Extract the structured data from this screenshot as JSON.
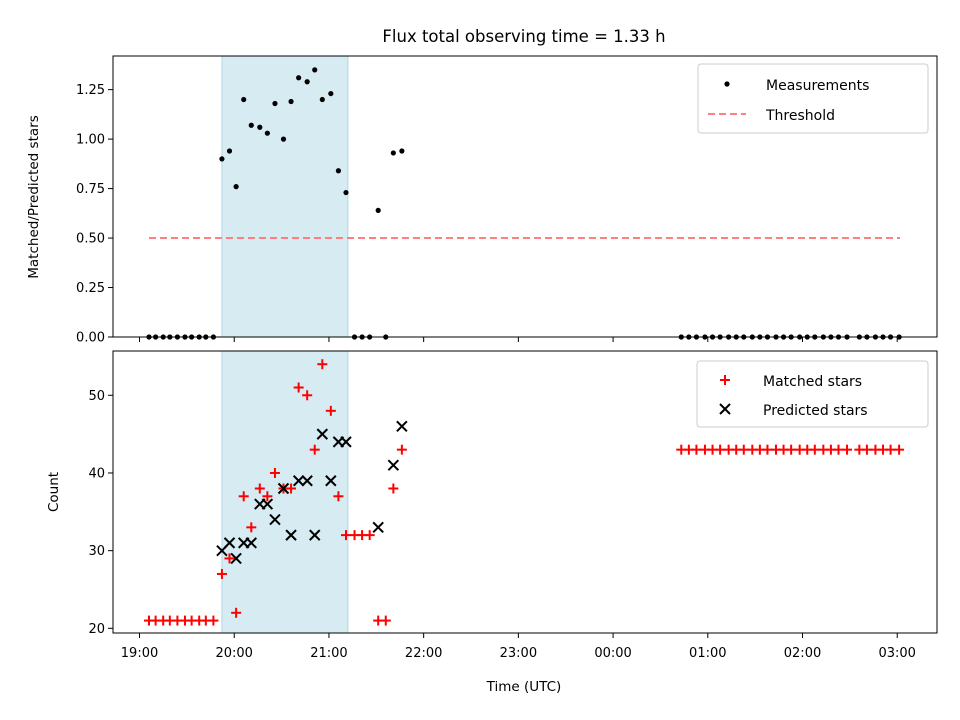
{
  "chart_data": {
    "type": "scatter",
    "title": "Flux total observing time = 1.33 h",
    "xlabel": "Time (UTC)",
    "x_ticks": [
      {
        "h": 19,
        "label": "19:00"
      },
      {
        "h": 20,
        "label": "20:00"
      },
      {
        "h": 21,
        "label": "21:00"
      },
      {
        "h": 22,
        "label": "22:00"
      },
      {
        "h": 23,
        "label": "23:00"
      },
      {
        "h": 24,
        "label": "00:00"
      },
      {
        "h": 25,
        "label": "01:00"
      },
      {
        "h": 26,
        "label": "02:00"
      },
      {
        "h": 27,
        "label": "03:00"
      }
    ],
    "xlim": [
      18.72,
      27.42
    ],
    "shaded_span": [
      19.87,
      21.2
    ],
    "panels": {
      "top": {
        "ylabel": "Matched/Predicted stars",
        "ylim": [
          0,
          1.42
        ],
        "y_ticks": [
          {
            "v": 0,
            "label": "0.00"
          },
          {
            "v": 0.25,
            "label": "0.25"
          },
          {
            "v": 0.5,
            "label": "0.50"
          },
          {
            "v": 0.75,
            "label": "0.75"
          },
          {
            "v": 1.0,
            "label": "1.00"
          },
          {
            "v": 1.25,
            "label": "1.25"
          }
        ],
        "legend": {
          "position": "top-right",
          "measurements": "Measurements",
          "threshold": "Threshold"
        },
        "threshold": {
          "value": 0.5,
          "x_range": [
            19.1,
            27.03
          ],
          "color": "#ff7f7f"
        },
        "measurements": [
          [
            19.1,
            0
          ],
          [
            19.17,
            0
          ],
          [
            19.25,
            0
          ],
          [
            19.32,
            0
          ],
          [
            19.4,
            0
          ],
          [
            19.48,
            0
          ],
          [
            19.55,
            0
          ],
          [
            19.63,
            0
          ],
          [
            19.7,
            0
          ],
          [
            19.78,
            0
          ],
          [
            19.87,
            0.9
          ],
          [
            19.95,
            0.94
          ],
          [
            20.02,
            0.76
          ],
          [
            20.1,
            1.2
          ],
          [
            20.18,
            1.07
          ],
          [
            20.27,
            1.06
          ],
          [
            20.35,
            1.03
          ],
          [
            20.43,
            1.18
          ],
          [
            20.52,
            1.0
          ],
          [
            20.6,
            1.19
          ],
          [
            20.68,
            1.31
          ],
          [
            20.77,
            1.29
          ],
          [
            20.85,
            1.35
          ],
          [
            20.93,
            1.2
          ],
          [
            21.02,
            1.23
          ],
          [
            21.1,
            0.84
          ],
          [
            21.18,
            0.73
          ],
          [
            21.27,
            0
          ],
          [
            21.35,
            0
          ],
          [
            21.43,
            0
          ],
          [
            21.52,
            0.64
          ],
          [
            21.6,
            0
          ],
          [
            21.68,
            0.93
          ],
          [
            21.77,
            0.94
          ],
          [
            24.72,
            0
          ],
          [
            24.8,
            0
          ],
          [
            24.88,
            0
          ],
          [
            24.97,
            0
          ],
          [
            25.05,
            0
          ],
          [
            25.13,
            0
          ],
          [
            25.22,
            0
          ],
          [
            25.3,
            0
          ],
          [
            25.38,
            0
          ],
          [
            25.47,
            0
          ],
          [
            25.55,
            0
          ],
          [
            25.63,
            0
          ],
          [
            25.72,
            0
          ],
          [
            25.8,
            0
          ],
          [
            25.88,
            0
          ],
          [
            25.97,
            0
          ],
          [
            26.05,
            0
          ],
          [
            26.13,
            0
          ],
          [
            26.22,
            0
          ],
          [
            26.3,
            0
          ],
          [
            26.38,
            0
          ],
          [
            26.47,
            0
          ],
          [
            26.6,
            0
          ],
          [
            26.68,
            0
          ],
          [
            26.77,
            0
          ],
          [
            26.85,
            0
          ],
          [
            26.93,
            0
          ],
          [
            27.02,
            0
          ]
        ]
      },
      "bottom": {
        "ylabel": "Count",
        "ylim": [
          19.4,
          55.7
        ],
        "y_ticks": [
          {
            "v": 20,
            "label": "20"
          },
          {
            "v": 30,
            "label": "30"
          },
          {
            "v": 40,
            "label": "40"
          },
          {
            "v": 50,
            "label": "50"
          }
        ],
        "legend": {
          "position": "top-right",
          "matched": "Matched stars",
          "predicted": "Predicted stars"
        },
        "matched": [
          [
            19.1,
            21
          ],
          [
            19.17,
            21
          ],
          [
            19.25,
            21
          ],
          [
            19.32,
            21
          ],
          [
            19.4,
            21
          ],
          [
            19.48,
            21
          ],
          [
            19.55,
            21
          ],
          [
            19.63,
            21
          ],
          [
            19.7,
            21
          ],
          [
            19.78,
            21
          ],
          [
            19.87,
            27
          ],
          [
            19.95,
            29
          ],
          [
            20.02,
            22
          ],
          [
            20.1,
            37
          ],
          [
            20.18,
            33
          ],
          [
            20.27,
            38
          ],
          [
            20.35,
            37
          ],
          [
            20.43,
            40
          ],
          [
            20.52,
            38
          ],
          [
            20.6,
            38
          ],
          [
            20.68,
            51
          ],
          [
            20.77,
            50
          ],
          [
            20.85,
            43
          ],
          [
            20.93,
            54
          ],
          [
            21.02,
            48
          ],
          [
            21.1,
            37
          ],
          [
            21.18,
            32
          ],
          [
            21.27,
            32
          ],
          [
            21.35,
            32
          ],
          [
            21.43,
            32
          ],
          [
            21.52,
            21
          ],
          [
            21.6,
            21
          ],
          [
            21.68,
            38
          ],
          [
            21.77,
            43
          ],
          [
            24.72,
            43
          ],
          [
            24.8,
            43
          ],
          [
            24.88,
            43
          ],
          [
            24.97,
            43
          ],
          [
            25.05,
            43
          ],
          [
            25.13,
            43
          ],
          [
            25.22,
            43
          ],
          [
            25.3,
            43
          ],
          [
            25.38,
            43
          ],
          [
            25.47,
            43
          ],
          [
            25.55,
            43
          ],
          [
            25.63,
            43
          ],
          [
            25.72,
            43
          ],
          [
            25.8,
            43
          ],
          [
            25.88,
            43
          ],
          [
            25.97,
            43
          ],
          [
            26.05,
            43
          ],
          [
            26.13,
            43
          ],
          [
            26.22,
            43
          ],
          [
            26.3,
            43
          ],
          [
            26.38,
            43
          ],
          [
            26.47,
            43
          ],
          [
            26.6,
            43
          ],
          [
            26.68,
            43
          ],
          [
            26.77,
            43
          ],
          [
            26.85,
            43
          ],
          [
            26.93,
            43
          ],
          [
            27.02,
            43
          ]
        ],
        "predicted": [
          [
            19.87,
            30
          ],
          [
            19.95,
            31
          ],
          [
            20.02,
            29
          ],
          [
            20.1,
            31
          ],
          [
            20.18,
            31
          ],
          [
            20.27,
            36
          ],
          [
            20.35,
            36
          ],
          [
            20.43,
            34
          ],
          [
            20.52,
            38
          ],
          [
            20.6,
            32
          ],
          [
            20.68,
            39
          ],
          [
            20.77,
            39
          ],
          [
            20.85,
            32
          ],
          [
            20.93,
            45
          ],
          [
            21.02,
            39
          ],
          [
            21.1,
            44
          ],
          [
            21.18,
            44
          ],
          [
            21.52,
            33
          ],
          [
            21.68,
            41
          ],
          [
            21.77,
            46
          ]
        ]
      }
    }
  }
}
